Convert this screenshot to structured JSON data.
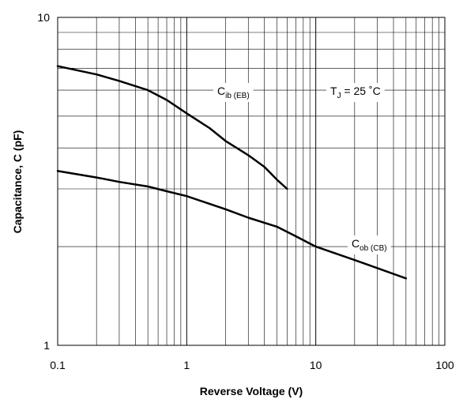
{
  "chart_data": {
    "type": "line",
    "xlabel": "Reverse Voltage (V)",
    "ylabel": "Capacitance, C (pF)",
    "x_scale": "log",
    "y_scale": "log",
    "xlim": [
      0.1,
      100
    ],
    "ylim": [
      1,
      10
    ],
    "x_tick_labels": [
      "0.1",
      "1",
      "10",
      "100"
    ],
    "y_tick_labels": [
      "1",
      "10"
    ],
    "grid": true,
    "colors": {
      "line": "#000000",
      "grid": "#000000",
      "background": "#ffffff"
    },
    "series": [
      {
        "name": "Cib (EB)",
        "label_main": "C",
        "label_sub": "ib (EB)",
        "x": [
          0.1,
          0.2,
          0.3,
          0.5,
          0.7,
          1,
          1.5,
          2,
          3,
          4,
          5,
          6
        ],
        "y": [
          7.1,
          6.7,
          6.4,
          6.0,
          5.6,
          5.1,
          4.6,
          4.2,
          3.8,
          3.5,
          3.2,
          3.0
        ]
      },
      {
        "name": "Cob (CB)",
        "label_main": "C",
        "label_sub": "ob (CB)",
        "x": [
          0.1,
          0.2,
          0.3,
          0.5,
          0.7,
          1,
          2,
          3,
          5,
          7,
          10,
          20,
          30,
          50
        ],
        "y": [
          3.4,
          3.25,
          3.15,
          3.05,
          2.95,
          2.85,
          2.6,
          2.45,
          2.3,
          2.15,
          2.0,
          1.82,
          1.72,
          1.6
        ]
      }
    ],
    "annotations": [
      {
        "main": "T",
        "sub": "J",
        "rest": " = 25 ˚C"
      }
    ]
  }
}
